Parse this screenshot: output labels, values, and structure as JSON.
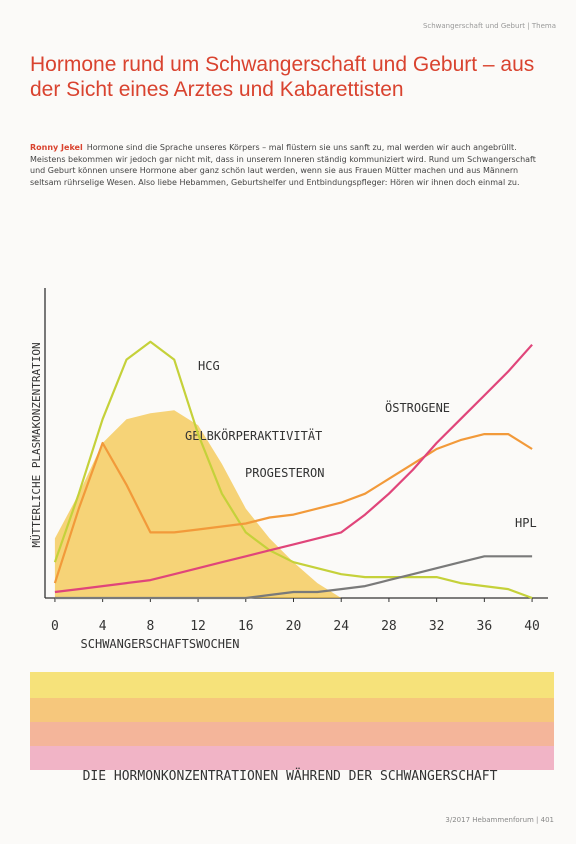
{
  "header": "Schwangerschaft und Geburt | Thema",
  "title": "Hormone rund um Schwangerschaft und Geburt – aus der Sicht eines Arztes und Kabarettisten",
  "author": "Ronny Jekel",
  "intro": "Hormone sind die Sprache unseres Körpers – mal flüstern sie uns sanft zu, mal werden wir auch angebrüllt. Meistens bekommen wir jedoch gar nicht mit, dass in unserem Inneren ständig kommuniziert wird. Rund um Schwangerschaft und Geburt können unsere Hormone aber ganz schön laut werden, wenn sie aus Frauen Mütter machen und aus Männern seltsam rührselige Wesen. Also liebe Hebammen, Geburtshelfer und Entbindungspfleger: Hören wir ihnen doch einmal zu.",
  "chart_data": {
    "type": "line",
    "caption": "DIE HORMONKONZENTRATIONEN WÄHREND DER SCHWANGERSCHAFT",
    "x_label": "SCHWANGERSCHAFTSWOCHEN",
    "y_label": "MÜTTERLICHE PLASMAKONZENTRATION",
    "x": [
      0,
      2,
      4,
      6,
      8,
      10,
      12,
      14,
      16,
      18,
      20,
      22,
      24,
      26,
      28,
      30,
      32,
      34,
      36,
      38,
      40
    ],
    "xlim": [
      -1,
      41
    ],
    "xticks": [
      0,
      4,
      8,
      12,
      16,
      20,
      24,
      28,
      32,
      36,
      40
    ],
    "ylim": [
      0,
      100
    ],
    "series": [
      {
        "name": "GELBKÖRPERAKTIVITÄT",
        "color": "#f3c240",
        "fill": true,
        "values": [
          20,
          35,
          52,
          60,
          62,
          63,
          58,
          45,
          30,
          20,
          12,
          5,
          0,
          0,
          0,
          0,
          0,
          0,
          0,
          0,
          0
        ]
      },
      {
        "name": "HCG",
        "color": "#c5d13a",
        "values": [
          12,
          35,
          60,
          80,
          86,
          80,
          55,
          35,
          22,
          16,
          12,
          10,
          8,
          7,
          7,
          7,
          7,
          5,
          4,
          3,
          0
        ]
      },
      {
        "name": "PROGESTERON",
        "color": "#f29a3a",
        "values": [
          5,
          30,
          52,
          38,
          22,
          22,
          23,
          24,
          25,
          27,
          28,
          30,
          32,
          35,
          40,
          45,
          50,
          53,
          55,
          55,
          50
        ]
      },
      {
        "name": "ÖSTROGENE",
        "color": "#e0457a",
        "values": [
          2,
          3,
          4,
          5,
          6,
          8,
          10,
          12,
          14,
          16,
          18,
          20,
          22,
          28,
          35,
          43,
          52,
          60,
          68,
          76,
          85
        ]
      },
      {
        "name": "HPL",
        "color": "#7a7a7a",
        "values": [
          0,
          0,
          0,
          0,
          0,
          0,
          0,
          0,
          0,
          1,
          2,
          2,
          3,
          4,
          6,
          8,
          10,
          12,
          14,
          14,
          14
        ]
      }
    ]
  },
  "footer": "3/2017 Hebammenforum | 401"
}
